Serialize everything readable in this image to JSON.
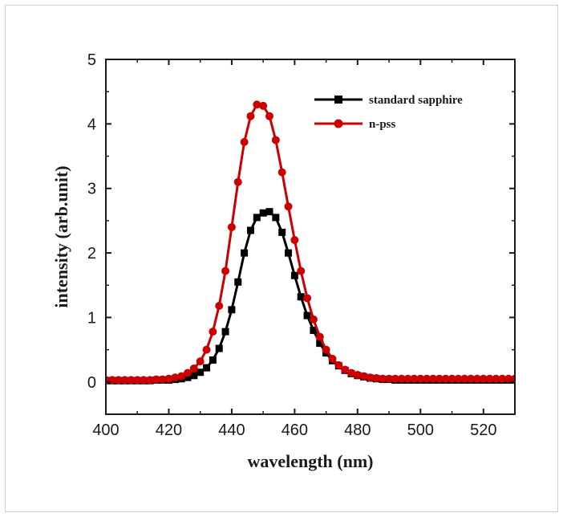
{
  "chart_data": {
    "type": "line",
    "xlabel": "wavelength (nm)",
    "ylabel": "intensity (arb.unit)",
    "xlim": [
      400,
      530
    ],
    "ylim": [
      -0.5,
      5
    ],
    "xticks": [
      400,
      420,
      440,
      460,
      480,
      500,
      520
    ],
    "yticks": [
      0,
      1,
      2,
      3,
      4,
      5
    ],
    "legend_position": "top-right",
    "series": [
      {
        "name": "standard sapphire",
        "color": "#000000",
        "marker": "square",
        "x": [
          400,
          402,
          404,
          406,
          408,
          410,
          412,
          414,
          416,
          418,
          420,
          422,
          424,
          426,
          428,
          430,
          432,
          434,
          436,
          438,
          440,
          442,
          444,
          446,
          448,
          450,
          452,
          454,
          456,
          458,
          460,
          462,
          464,
          466,
          468,
          470,
          472,
          474,
          476,
          478,
          480,
          482,
          484,
          486,
          488,
          490,
          492,
          494,
          496,
          498,
          500,
          502,
          504,
          506,
          508,
          510,
          512,
          514,
          516,
          518,
          520,
          522,
          524,
          526,
          528,
          530
        ],
        "y": [
          0.02,
          0.02,
          0.02,
          0.02,
          0.02,
          0.02,
          0.02,
          0.02,
          0.03,
          0.03,
          0.03,
          0.04,
          0.05,
          0.07,
          0.1,
          0.15,
          0.22,
          0.34,
          0.52,
          0.78,
          1.12,
          1.55,
          2.0,
          2.35,
          2.55,
          2.62,
          2.64,
          2.55,
          2.32,
          2.0,
          1.65,
          1.32,
          1.03,
          0.8,
          0.6,
          0.45,
          0.33,
          0.25,
          0.18,
          0.13,
          0.1,
          0.08,
          0.06,
          0.05,
          0.04,
          0.04,
          0.03,
          0.03,
          0.03,
          0.03,
          0.03,
          0.03,
          0.03,
          0.03,
          0.03,
          0.03,
          0.03,
          0.03,
          0.03,
          0.03,
          0.03,
          0.03,
          0.03,
          0.03,
          0.03,
          0.03
        ]
      },
      {
        "name": "n-pss",
        "color": "#cc0000",
        "marker": "circle",
        "x": [
          400,
          402,
          404,
          406,
          408,
          410,
          412,
          414,
          416,
          418,
          420,
          422,
          424,
          426,
          428,
          430,
          432,
          434,
          436,
          438,
          440,
          442,
          444,
          446,
          448,
          450,
          452,
          454,
          456,
          458,
          460,
          462,
          464,
          466,
          468,
          470,
          472,
          474,
          476,
          478,
          480,
          482,
          484,
          486,
          488,
          490,
          492,
          494,
          496,
          498,
          500,
          502,
          504,
          506,
          508,
          510,
          512,
          514,
          516,
          518,
          520,
          522,
          524,
          526,
          528,
          530
        ],
        "y": [
          0.03,
          0.03,
          0.03,
          0.03,
          0.03,
          0.03,
          0.03,
          0.03,
          0.04,
          0.04,
          0.05,
          0.07,
          0.09,
          0.14,
          0.21,
          0.32,
          0.5,
          0.78,
          1.18,
          1.72,
          2.4,
          3.1,
          3.72,
          4.12,
          4.3,
          4.28,
          4.12,
          3.75,
          3.25,
          2.72,
          2.2,
          1.72,
          1.3,
          0.97,
          0.7,
          0.5,
          0.36,
          0.26,
          0.19,
          0.14,
          0.11,
          0.09,
          0.07,
          0.06,
          0.05,
          0.05,
          0.05,
          0.05,
          0.05,
          0.05,
          0.05,
          0.05,
          0.05,
          0.05,
          0.05,
          0.05,
          0.05,
          0.05,
          0.05,
          0.05,
          0.05,
          0.05,
          0.05,
          0.05,
          0.05,
          0.05
        ]
      }
    ]
  }
}
